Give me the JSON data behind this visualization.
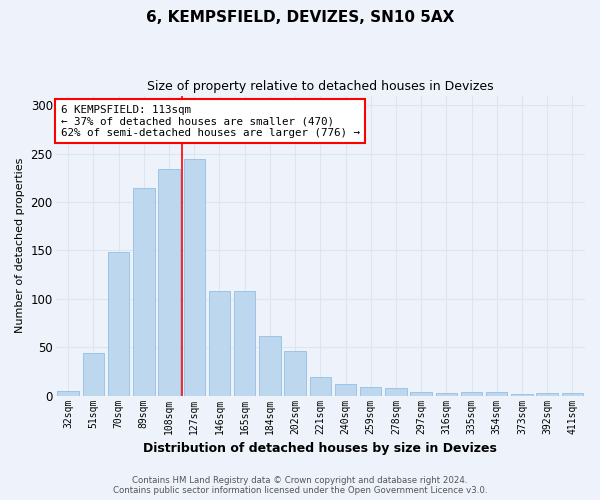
{
  "title1": "6, KEMPSFIELD, DEVIZES, SN10 5AX",
  "title2": "Size of property relative to detached houses in Devizes",
  "xlabel": "Distribution of detached houses by size in Devizes",
  "ylabel": "Number of detached properties",
  "categories": [
    "32sqm",
    "51sqm",
    "70sqm",
    "89sqm",
    "108sqm",
    "127sqm",
    "146sqm",
    "165sqm",
    "184sqm",
    "202sqm",
    "221sqm",
    "240sqm",
    "259sqm",
    "278sqm",
    "297sqm",
    "316sqm",
    "335sqm",
    "354sqm",
    "373sqm",
    "392sqm",
    "411sqm"
  ],
  "values": [
    5,
    44,
    148,
    215,
    234,
    244,
    108,
    108,
    62,
    46,
    19,
    12,
    9,
    8,
    4,
    3,
    4,
    4,
    2,
    3,
    3
  ],
  "bar_color": "#BDD7EE",
  "bar_edge_color": "#9DC3E6",
  "annotation_text_line1": "6 KEMPSFIELD: 113sqm",
  "annotation_text_line2": "← 37% of detached houses are smaller (470)",
  "annotation_text_line3": "62% of semi-detached houses are larger (776) →",
  "annotation_box_color": "white",
  "annotation_box_edge_color": "red",
  "vline_x_index": 4.5,
  "ylim": [
    0,
    310
  ],
  "yticks": [
    0,
    50,
    100,
    150,
    200,
    250,
    300
  ],
  "grid_color": "#DCE6F1",
  "background_color": "#EEF2FA",
  "footer1": "Contains HM Land Registry data © Crown copyright and database right 2024.",
  "footer2": "Contains public sector information licensed under the Open Government Licence v3.0."
}
